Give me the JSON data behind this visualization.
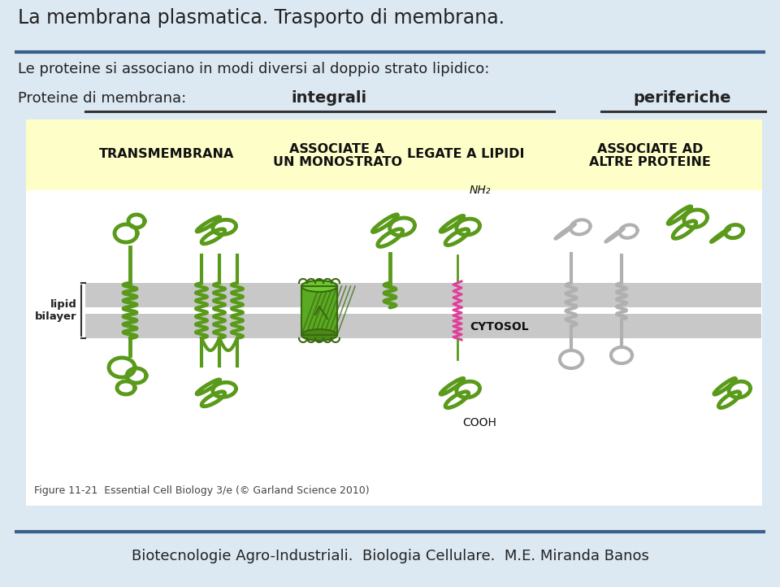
{
  "bg_color": "#dce8f2",
  "title_text": "La membrana plasmatica. Trasporto di membrana.",
  "subtitle_text": "Le proteine si associano in modi diversi al doppio strato lipidico:",
  "label_membrana": "Proteine di membrana:",
  "label_integrali": "integrali",
  "label_periferiche": "periferiche",
  "cat1": "TRANSMEMBRANA",
  "cat2": "ASSOCIATE A\nUN MONOSTRATO",
  "cat3": "LEGATE A LIPIDI",
  "cat4": "ASSOCIATE AD\nALTRE PROTEINE",
  "yellow_bg": "#fefec8",
  "footer_text": "Biotecnologie Agro-Industriali.  Biologia Cellulare.  M.E. Miranda Banos",
  "separator_color": "#3a5f8a",
  "figure_caption": "Figure 11-21  Essential Cell Biology 3/e (© Garland Science 2010)",
  "lipid_bilayer_label": "lipid\nbilayer",
  "nh2_label": "NH₂",
  "cytosol_label": "CYTOSOL",
  "cooh_label": "COOH",
  "green": "#5a9a1a",
  "dark_green": "#3a6a10",
  "gray": "#b0b0b0",
  "dark_gray": "#888888",
  "pink": "#e0409a",
  "bilayer_gray": "#c8c8c8",
  "white": "#ffffff"
}
